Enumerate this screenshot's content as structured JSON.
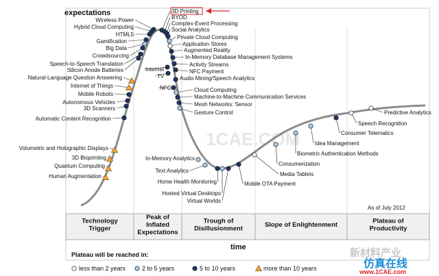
{
  "axes": {
    "y_label": "expectations",
    "x_label": "time"
  },
  "as_of": "As of July 2012",
  "phases": [
    {
      "lines": [
        "Technology",
        "Trigger"
      ]
    },
    {
      "lines": [
        "Peak of",
        "Inflated",
        "Expectations"
      ]
    },
    {
      "lines": [
        "Trough of",
        "Disillusionment"
      ]
    },
    {
      "lines": [
        "Slope of Enlightenment"
      ]
    },
    {
      "lines": [
        "Plateau of",
        "Productivity"
      ]
    }
  ],
  "legend": {
    "title": "Plateau will be reached in:",
    "items": [
      {
        "marker": "white-circle",
        "label": "less than 2 years"
      },
      {
        "marker": "lightblue-circle",
        "label": "2 to 5 years"
      },
      {
        "marker": "darkblue-circle",
        "label": "5 to 10 years"
      },
      {
        "marker": "orange-triangle",
        "label": "more than 10 years"
      }
    ]
  },
  "marker_colors": {
    "white-circle": "#ffffff",
    "lightblue-circle": "#a9cbe6",
    "darkblue-circle": "#1f3466",
    "orange-triangle": "#f2a33a"
  },
  "highlighted_label": "3D Printing",
  "technologies": [
    "3D Printing",
    "BYOD",
    "Complex-Event Processing",
    "Social Analytics",
    "Private Cloud Computing",
    "Application Stores",
    "Augmented Reality",
    "In-Memory Database Management Systems",
    "Activity Streams",
    "NFC Payment",
    "Audio Mining/Speech Analytics",
    "Cloud Computing",
    "Machine-to-Machine Communication Services",
    "Mesh Networks: Sensor",
    "Gesture Control",
    "Internet",
    "TV",
    "NFC",
    "Wireless Power",
    "Hybrid Cloud Computing",
    "HTML5",
    "Gamification",
    "Big Data",
    "Crowdsourcing",
    "Speech-to-Speech Translation",
    "Silicon Anode Batteries",
    "Natural-Language Question Answering",
    "Internet of Things",
    "Mobile Robots",
    "Autonomous Vehicles",
    "3D Scanners",
    "Automatic Content Recognition",
    "Volumetric and Holographic Displays",
    "3D Bioprinting",
    "Quantum Computing",
    "Human Augmentation",
    "In-Memory Analytics",
    "Text Analytics",
    "Home Health Monitoring",
    "Hosted Virtual Desktops",
    "Virtual Worlds",
    "Mobile OTA Payment",
    "Media Tablets",
    "Consumerization",
    "Biometric Authentication Methods",
    "Idea Management",
    "Consumer Telematics",
    "Speech Recognition",
    "Predictive Analytics"
  ],
  "watermark": {
    "center": "1CAE.COM",
    "corner_cn": "新材料产业",
    "site_cn": "仿真在线",
    "site": "www.1CAE.com"
  }
}
